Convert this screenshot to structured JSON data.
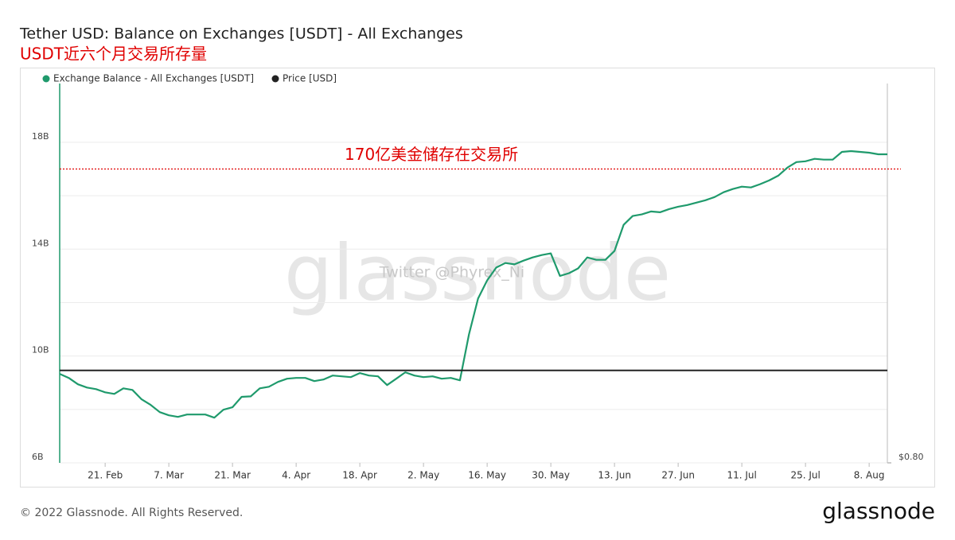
{
  "chart_data": {
    "type": "line",
    "title": "Tether USD: Balance on Exchanges [USDT] - All Exchanges",
    "subtitle": "USDT近六个月交易所存量",
    "annotation": {
      "text": "170亿美金储存在交易所",
      "value": 17,
      "color": "#e00000"
    },
    "watermark": "glassnode",
    "watermark_note": "Twitter @Phyrex_Ni",
    "footer": "© 2022 Glassnode. All Rights Reserved.",
    "logo": "glassnode",
    "categories": [
      null,
      null,
      null,
      null,
      null,
      "21. Feb",
      null,
      null,
      null,
      null,
      null,
      null,
      "7. Mar",
      null,
      null,
      null,
      null,
      null,
      null,
      "21. Mar",
      null,
      null,
      null,
      null,
      null,
      null,
      "4. Apr",
      null,
      null,
      null,
      null,
      null,
      null,
      "18. Apr",
      null,
      null,
      null,
      null,
      null,
      null,
      "2. May",
      null,
      null,
      null,
      null,
      null,
      null,
      "16. May",
      null,
      null,
      null,
      null,
      null,
      null,
      "30. May",
      null,
      null,
      null,
      null,
      null,
      null,
      "13. Jun",
      null,
      null,
      null,
      null,
      null,
      null,
      "27. Jun",
      null,
      null,
      null,
      null,
      null,
      null,
      "11. Jul",
      null,
      null,
      null,
      null,
      null,
      null,
      "25. Jul",
      null,
      null,
      null,
      null,
      null,
      null,
      "8. Aug",
      null,
      null
    ],
    "series": [
      {
        "name": "Exchange Balance - All Exchanges [USDT]",
        "color": "#1f9a6c",
        "values": [
          9.33,
          9.18,
          8.94,
          8.82,
          8.76,
          8.64,
          8.58,
          8.79,
          8.73,
          8.38,
          8.17,
          7.9,
          7.78,
          7.72,
          7.81,
          7.81,
          7.81,
          7.69,
          7.99,
          8.08,
          8.47,
          8.49,
          8.79,
          8.85,
          9.03,
          9.15,
          9.18,
          9.18,
          9.06,
          9.12,
          9.27,
          9.24,
          9.21,
          9.36,
          9.27,
          9.24,
          8.91,
          9.15,
          9.39,
          9.27,
          9.21,
          9.24,
          9.15,
          9.18,
          9.09,
          10.81,
          12.15,
          12.83,
          13.31,
          13.48,
          13.43,
          13.57,
          13.69,
          13.78,
          13.84,
          13.0,
          13.1,
          13.28,
          13.69,
          13.6,
          13.6,
          13.93,
          14.91,
          15.24,
          15.3,
          15.41,
          15.38,
          15.5,
          15.59,
          15.65,
          15.74,
          15.83,
          15.95,
          16.13,
          16.25,
          16.34,
          16.31,
          16.43,
          16.57,
          16.75,
          17.05,
          17.26,
          17.29,
          17.38,
          17.35,
          17.35,
          17.64,
          17.67,
          17.64,
          17.61,
          17.55,
          17.55
        ]
      },
      {
        "name": "Price [USD]",
        "color": "#222222",
        "axis": "y2",
        "values": [
          1.0,
          1.0,
          1.0,
          1.0,
          1.0,
          1.0,
          1.0,
          1.0,
          1.0,
          1.0,
          1.0,
          1.0,
          1.0,
          1.0,
          1.0,
          1.0,
          1.0,
          1.0,
          1.0,
          1.0,
          1.0,
          1.0,
          1.0,
          1.0,
          1.0,
          1.0,
          1.0,
          1.0,
          1.0,
          1.0,
          1.0,
          1.0,
          1.0,
          1.0,
          1.0,
          1.0,
          1.0,
          1.0,
          1.0,
          1.0,
          1.0,
          1.0,
          1.0,
          1.0,
          1.0,
          1.0,
          1.0,
          1.0,
          1.0,
          1.0,
          1.0,
          1.0,
          1.0,
          1.0,
          1.0,
          1.0,
          1.0,
          1.0,
          1.0,
          1.0,
          1.0,
          1.0,
          1.0,
          1.0,
          1.0,
          1.0,
          1.0,
          1.0,
          1.0,
          1.0,
          1.0,
          1.0,
          1.0,
          1.0,
          1.0,
          1.0,
          1.0,
          1.0,
          1.0,
          1.0,
          1.0,
          1.0,
          1.0,
          1.0,
          1.0,
          1.0,
          1.0,
          1.0,
          1.0,
          1.0,
          1.0,
          1.0
        ]
      }
    ],
    "ylim": [
      6,
      20.2
    ],
    "yticks": [
      {
        "value": 6,
        "label": "6B"
      },
      {
        "value": 10,
        "label": "10B"
      },
      {
        "value": 14,
        "label": "14B"
      },
      {
        "value": 18,
        "label": "18B"
      }
    ],
    "minor_yticks": [
      8,
      12,
      16
    ],
    "y2lim": [
      0.8,
      1.62
    ],
    "y2ticks": [
      {
        "value": 0.8,
        "label": "$0.80"
      }
    ],
    "grid": true,
    "legend": "top-left"
  }
}
